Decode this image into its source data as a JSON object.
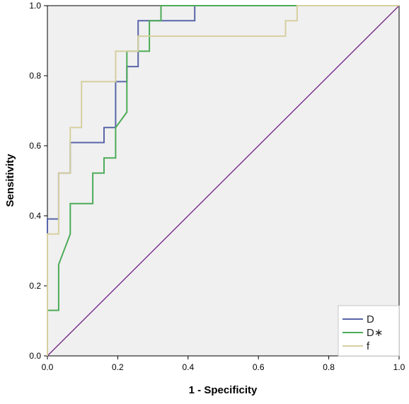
{
  "chart_data": {
    "type": "line",
    "xlabel": "1 - Specificity",
    "ylabel": "Sensitivity",
    "xlim": [
      0.0,
      1.0
    ],
    "ylim": [
      0.0,
      1.0
    ],
    "xticks": [
      "0.0",
      "0.2",
      "0.4",
      "0.6",
      "0.8",
      "1.0"
    ],
    "yticks": [
      "0.0",
      "0.2",
      "0.4",
      "0.6",
      "0.8",
      "1.0"
    ],
    "grid": false,
    "legend_position": "bottom-right",
    "colors": {
      "plot_background": "#f0f0f0",
      "reference": "#7a2b8a"
    },
    "series": [
      {
        "name": "D",
        "color": "#5866a8",
        "x": [
          0.0,
          0.0,
          0.032,
          0.032,
          0.065,
          0.065,
          0.161,
          0.161,
          0.194,
          0.194,
          0.226,
          0.226,
          0.258,
          0.258,
          0.323,
          0.323,
          0.419,
          0.419,
          1.0
        ],
        "y": [
          0.0,
          0.391,
          0.391,
          0.522,
          0.522,
          0.609,
          0.609,
          0.652,
          0.652,
          0.783,
          0.783,
          0.826,
          0.826,
          0.957,
          0.957,
          0.957,
          0.957,
          1.0,
          1.0
        ]
      },
      {
        "name": "D∗",
        "color": "#4cab58",
        "x": [
          0.0,
          0.0,
          0.032,
          0.032,
          0.065,
          0.065,
          0.129,
          0.129,
          0.161,
          0.161,
          0.194,
          0.194,
          0.226,
          0.226,
          0.258,
          0.258,
          0.29,
          0.29,
          0.323,
          0.323,
          1.0
        ],
        "y": [
          0.0,
          0.13,
          0.13,
          0.261,
          0.348,
          0.435,
          0.435,
          0.522,
          0.522,
          0.565,
          0.565,
          0.652,
          0.696,
          0.87,
          0.87,
          0.87,
          0.87,
          0.957,
          0.957,
          1.0,
          1.0
        ]
      },
      {
        "name": "f",
        "color": "#d6cfa0",
        "x": [
          0.0,
          0.0,
          0.032,
          0.032,
          0.065,
          0.065,
          0.097,
          0.097,
          0.194,
          0.194,
          0.258,
          0.258,
          0.677,
          0.677,
          0.71,
          0.71,
          1.0
        ],
        "y": [
          0.0,
          0.348,
          0.348,
          0.522,
          0.522,
          0.652,
          0.652,
          0.783,
          0.783,
          0.87,
          0.87,
          0.913,
          0.913,
          0.957,
          0.957,
          1.0,
          1.0
        ]
      }
    ],
    "reference_line": {
      "x": [
        0.0,
        1.0
      ],
      "y": [
        0.0,
        1.0
      ]
    }
  }
}
